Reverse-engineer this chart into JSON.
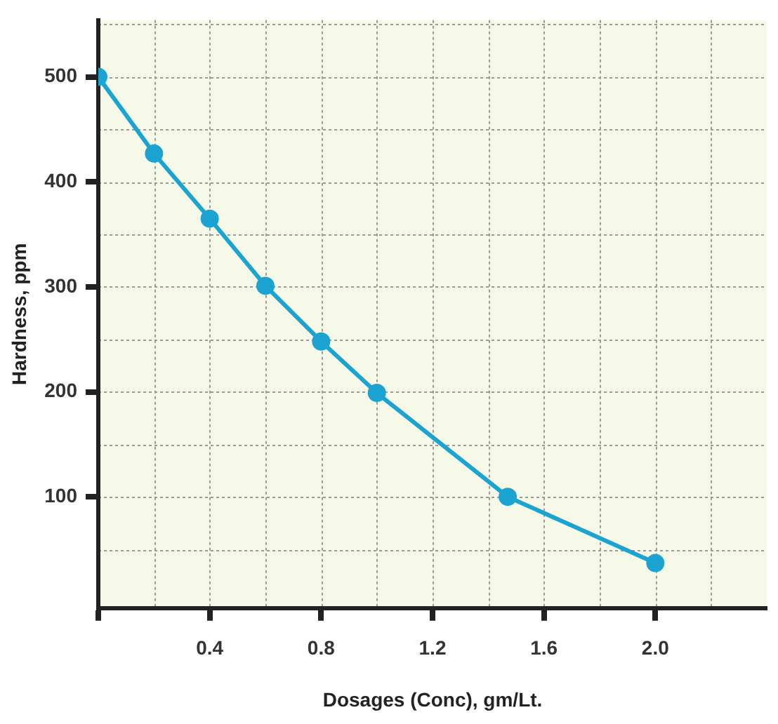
{
  "chart_data": {
    "type": "line",
    "xlabel": "Dosages (Conc), gm/Lt.",
    "ylabel": "Hardness, ppm",
    "x": [
      0,
      0.2,
      0.4,
      0.6,
      0.8,
      1.0,
      1.47,
      2.0
    ],
    "series": [
      {
        "color": "#1ba3d1",
        "values": [
          500,
          427,
          365,
          301,
          248,
          199,
          100,
          37
        ]
      }
    ],
    "xlim": [
      0,
      2.4
    ],
    "xticks": [
      {
        "value": 0,
        "label": null
      },
      {
        "value": 0.4,
        "label": "0.4"
      },
      {
        "value": 0.8,
        "label": "0.8"
      },
      {
        "value": 1.2,
        "label": "1.2"
      },
      {
        "value": 1.6,
        "label": "1.6"
      },
      {
        "value": 2,
        "label": "2.0"
      }
    ],
    "ylim": [
      -6,
      554
    ],
    "yticks": [
      100,
      200,
      300,
      400,
      500
    ],
    "grid": true,
    "marker": "circle",
    "line_style": "solid",
    "legend": false
  }
}
